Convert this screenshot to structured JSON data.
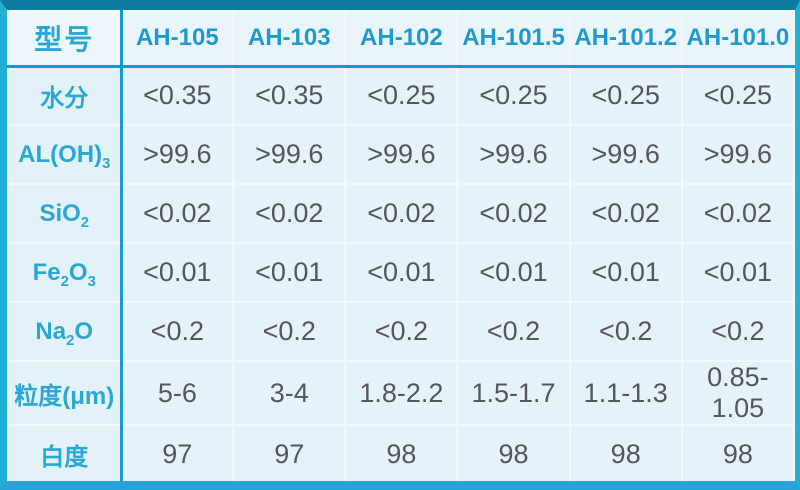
{
  "table": {
    "header": {
      "corner_label": "型号",
      "models": [
        "AH-105",
        "AH-103",
        "AH-102",
        "AH-101.5",
        "AH-101.2",
        "AH-101.0"
      ]
    },
    "rows": [
      {
        "id": "moisture",
        "label": [
          {
            "t": "水分"
          }
        ],
        "values": [
          "<0.35",
          "<0.35",
          "<0.25",
          "<0.25",
          "<0.25",
          "<0.25"
        ]
      },
      {
        "id": "aloh3",
        "label": [
          {
            "t": "AL(OH)"
          },
          {
            "t": "3",
            "sub": true
          }
        ],
        "values": [
          ">99.6",
          ">99.6",
          ">99.6",
          ">99.6",
          ">99.6",
          ">99.6"
        ]
      },
      {
        "id": "sio2",
        "label": [
          {
            "t": "SiO"
          },
          {
            "t": "2",
            "sub": true
          }
        ],
        "values": [
          "<0.02",
          "<0.02",
          "<0.02",
          "<0.02",
          "<0.02",
          "<0.02"
        ]
      },
      {
        "id": "fe2o3",
        "label": [
          {
            "t": "Fe"
          },
          {
            "t": "2",
            "sub": true
          },
          {
            "t": "O"
          },
          {
            "t": "3",
            "sub": true
          }
        ],
        "values": [
          "<0.01",
          "<0.01",
          "<0.01",
          "<0.01",
          "<0.01",
          "<0.01"
        ]
      },
      {
        "id": "na2o",
        "label": [
          {
            "t": "Na"
          },
          {
            "t": "2",
            "sub": true
          },
          {
            "t": "O"
          }
        ],
        "values": [
          "<0.2",
          "<0.2",
          "<0.2",
          "<0.2",
          "<0.2",
          "<0.2"
        ]
      },
      {
        "id": "particle-size",
        "label": [
          {
            "t": "粒度(μm)"
          }
        ],
        "values": [
          "5-6",
          "3-4",
          "1.8-2.2",
          "1.5-1.7",
          "1.1-1.3",
          "0.85-1.05"
        ]
      },
      {
        "id": "whiteness",
        "label": [
          {
            "t": "白度"
          }
        ],
        "values": [
          "97",
          "97",
          "98",
          "98",
          "98",
          "98"
        ]
      }
    ]
  },
  "colors": {
    "frame_top": "#0e7ba1",
    "frame_bottom": "#2aa1d8",
    "frame_sides": "#23aed4",
    "thick_divider": "#1898cc",
    "thin_divider": "#f0f9fd",
    "cell_background": "#e6f2f9",
    "header_text": "#1d9bd0",
    "label_text": "#29a8d6",
    "value_text": "#55575a"
  },
  "chart_data": {
    "type": "table",
    "columns": [
      "型号",
      "AH-105",
      "AH-103",
      "AH-102",
      "AH-101.5",
      "AH-101.2",
      "AH-101.0"
    ],
    "rows": [
      [
        "水分",
        "<0.35",
        "<0.35",
        "<0.25",
        "<0.25",
        "<0.25",
        "<0.25"
      ],
      [
        "AL(OH)₃",
        ">99.6",
        ">99.6",
        ">99.6",
        ">99.6",
        ">99.6",
        ">99.6"
      ],
      [
        "SiO₂",
        "<0.02",
        "<0.02",
        "<0.02",
        "<0.02",
        "<0.02",
        "<0.02"
      ],
      [
        "Fe₂O₃",
        "<0.01",
        "<0.01",
        "<0.01",
        "<0.01",
        "<0.01",
        "<0.01"
      ],
      [
        "Na₂O",
        "<0.2",
        "<0.2",
        "<0.2",
        "<0.2",
        "<0.2",
        "<0.2"
      ],
      [
        "粒度(μm)",
        "5-6",
        "3-4",
        "1.8-2.2",
        "1.5-1.7",
        "1.1-1.3",
        "0.85-1.05"
      ],
      [
        "白度",
        "97",
        "97",
        "98",
        "98",
        "98",
        "98"
      ]
    ]
  }
}
